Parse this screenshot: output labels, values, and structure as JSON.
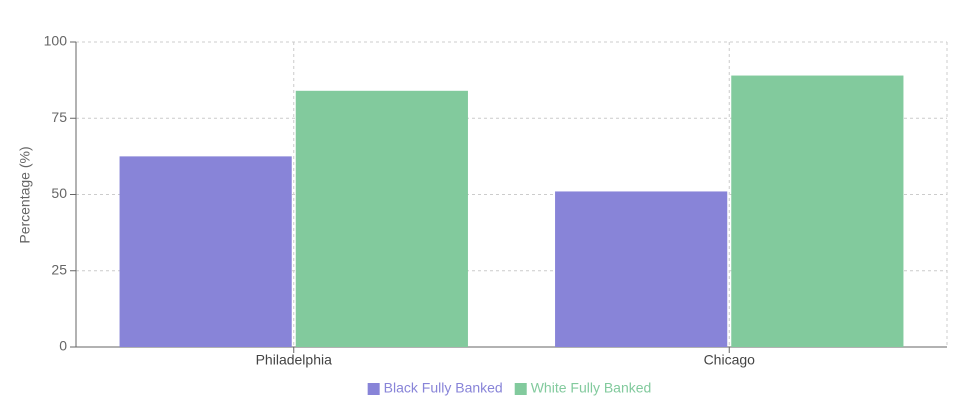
{
  "chart_data": {
    "type": "bar",
    "categories": [
      "Philadelphia",
      "Chicago"
    ],
    "series": [
      {
        "name": "Black Fully Banked",
        "color": "#8884d8",
        "values": [
          62.5,
          51
        ]
      },
      {
        "name": "White Fully Banked",
        "color": "#82ca9d",
        "values": [
          84,
          89
        ]
      }
    ],
    "ylabel": "Percentage (%)",
    "ylim": [
      0,
      100
    ],
    "yticks": [
      0,
      25,
      50,
      75,
      100
    ],
    "grid": true,
    "legend": "bottom"
  }
}
